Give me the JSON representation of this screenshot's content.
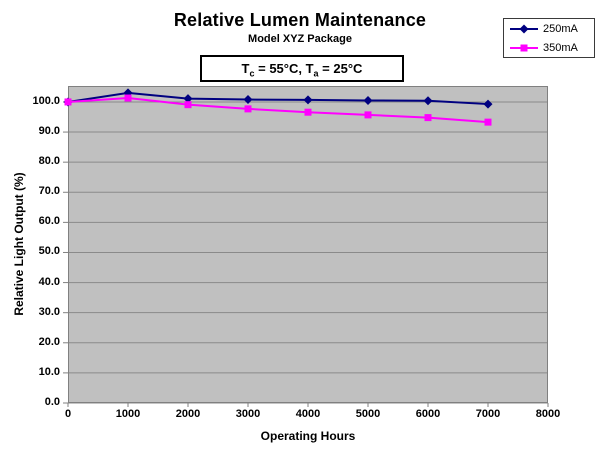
{
  "title": "Relative Lumen Maintenance",
  "subtitle": "Model XYZ Package",
  "annotation": {
    "t1": "T",
    "sub1": "c",
    "t2": " = 55°C, T",
    "sub2": "a",
    "t3": " = 25°C"
  },
  "axes": {
    "x_title": "Operating Hours",
    "y_title": "Relative Light Output (%)"
  },
  "colors": {
    "series_250mA": "#000080",
    "series_350mA": "#FF00FF",
    "plot_background": "#C0C0C0",
    "gridline": "#8A8A8A",
    "axis_line": "#808080"
  },
  "chart_data": {
    "type": "line",
    "title": "Relative Lumen Maintenance",
    "subtitle": "Model XYZ Package",
    "annotation": "Tc = 55°C, Ta = 25°C",
    "xlabel": "Operating Hours",
    "ylabel": "Relative Light Output (%)",
    "x": [
      0,
      1000,
      2000,
      3000,
      4000,
      5000,
      6000,
      7000
    ],
    "series": [
      {
        "name": "250mA",
        "color": "#000080",
        "marker": "diamond",
        "values": [
          100.0,
          103.0,
          101.1,
          100.8,
          100.7,
          100.5,
          100.4,
          99.3
        ]
      },
      {
        "name": "350mA",
        "color": "#FF00FF",
        "marker": "square",
        "values": [
          100.0,
          101.3,
          99.1,
          97.7,
          96.6,
          95.7,
          94.8,
          93.3
        ]
      }
    ],
    "xlim": [
      0,
      8000
    ],
    "ylim": [
      0,
      105.3
    ],
    "x_ticks": [
      0,
      1000,
      2000,
      3000,
      4000,
      5000,
      6000,
      7000,
      8000
    ],
    "x_tick_labels": [
      "0",
      "1000",
      "2000",
      "3000",
      "4000",
      "5000",
      "6000",
      "7000",
      "8000"
    ],
    "y_ticks": [
      0,
      10,
      20,
      30,
      40,
      50,
      60,
      70,
      80,
      90,
      100
    ],
    "y_tick_labels": [
      "0.0",
      "10.0",
      "20.0",
      "30.0",
      "40.0",
      "50.0",
      "60.0",
      "70.0",
      "80.0",
      "90.0",
      "100.0"
    ],
    "grid": "horizontal",
    "legend_position": "top-right"
  }
}
